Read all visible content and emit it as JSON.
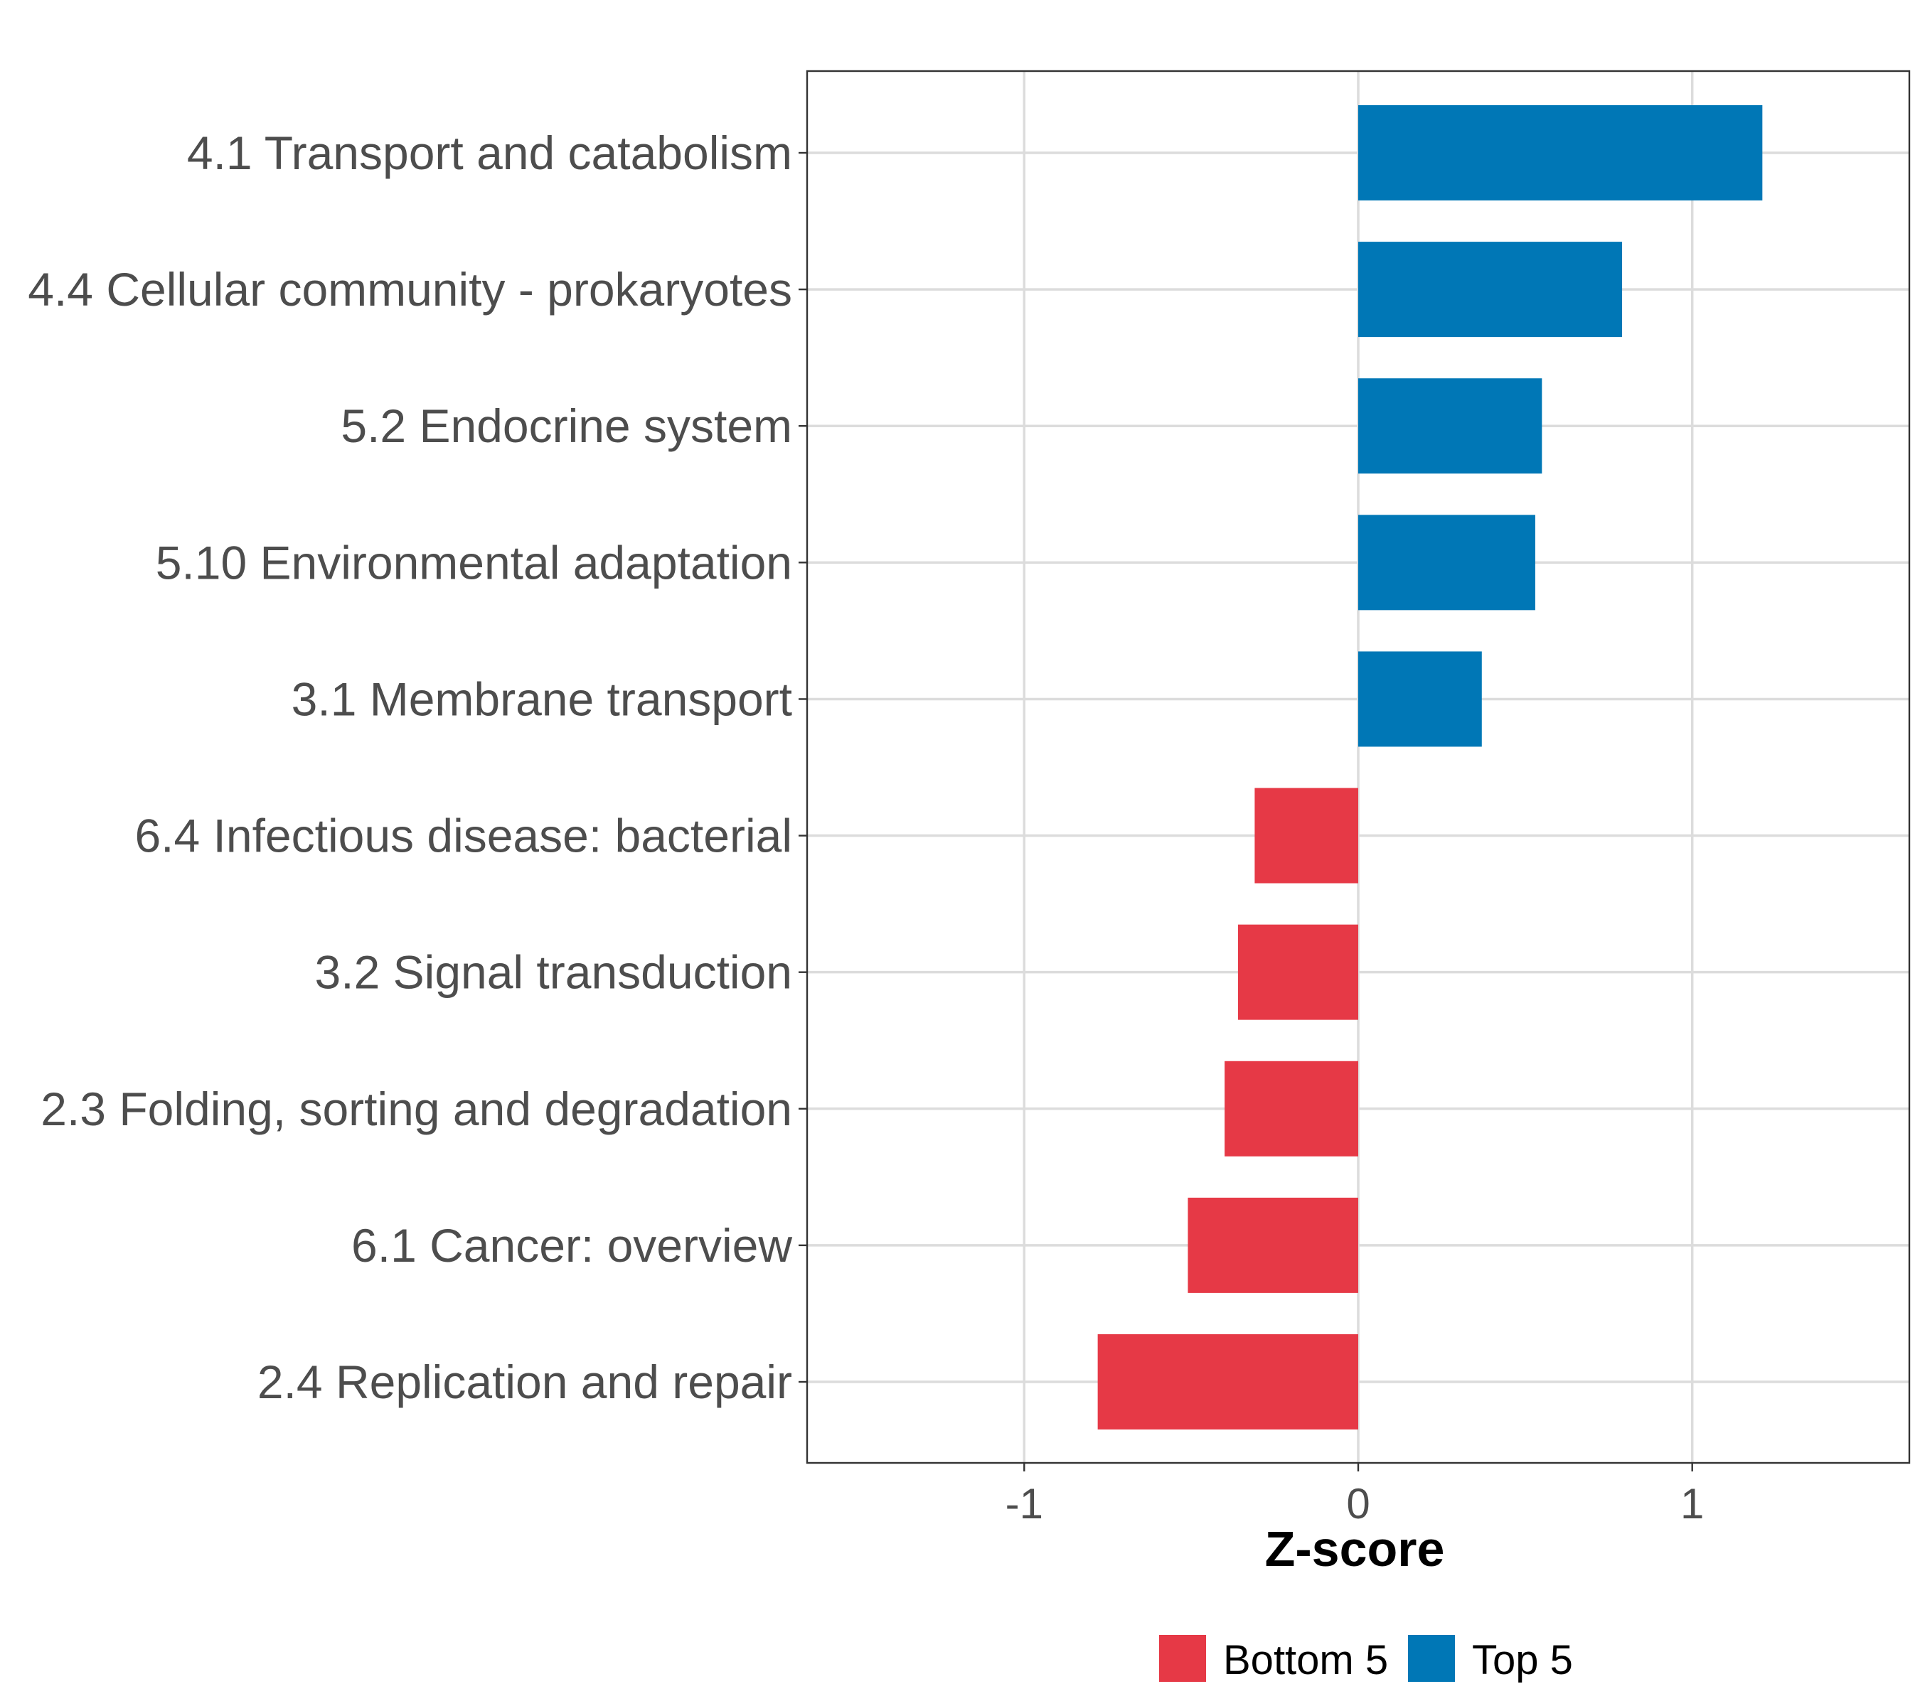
{
  "chart_data": {
    "type": "bar",
    "orientation": "horizontal",
    "xlabel": "Z-score",
    "ylabel": "",
    "xlim": [
      -1.65,
      1.65
    ],
    "xticks": [
      -1,
      0,
      1
    ],
    "xtick_labels": [
      "-1",
      "0",
      "1"
    ],
    "grid": true,
    "categories": [
      "4.1 Transport and catabolism",
      "4.4 Cellular community - prokaryotes",
      "5.2 Endocrine system",
      "5.10 Environmental adaptation",
      "3.1 Membrane transport",
      "6.4 Infectious disease: bacterial",
      "3.2 Signal transduction",
      "2.3 Folding, sorting and degradation",
      "6.1 Cancer: overview",
      "2.4 Replication and repair"
    ],
    "values": [
      1.21,
      0.79,
      0.55,
      0.53,
      0.37,
      -0.31,
      -0.36,
      -0.4,
      -0.51,
      -0.78
    ],
    "groups": [
      "Top 5",
      "Top 5",
      "Top 5",
      "Top 5",
      "Top 5",
      "Bottom 5",
      "Bottom 5",
      "Bottom 5",
      "Bottom 5",
      "Bottom 5"
    ],
    "legend": {
      "position": "bottom",
      "entries": [
        {
          "label": "Bottom 5",
          "color": "#E63946"
        },
        {
          "label": "Top 5",
          "color": "#0077B6"
        }
      ]
    }
  }
}
